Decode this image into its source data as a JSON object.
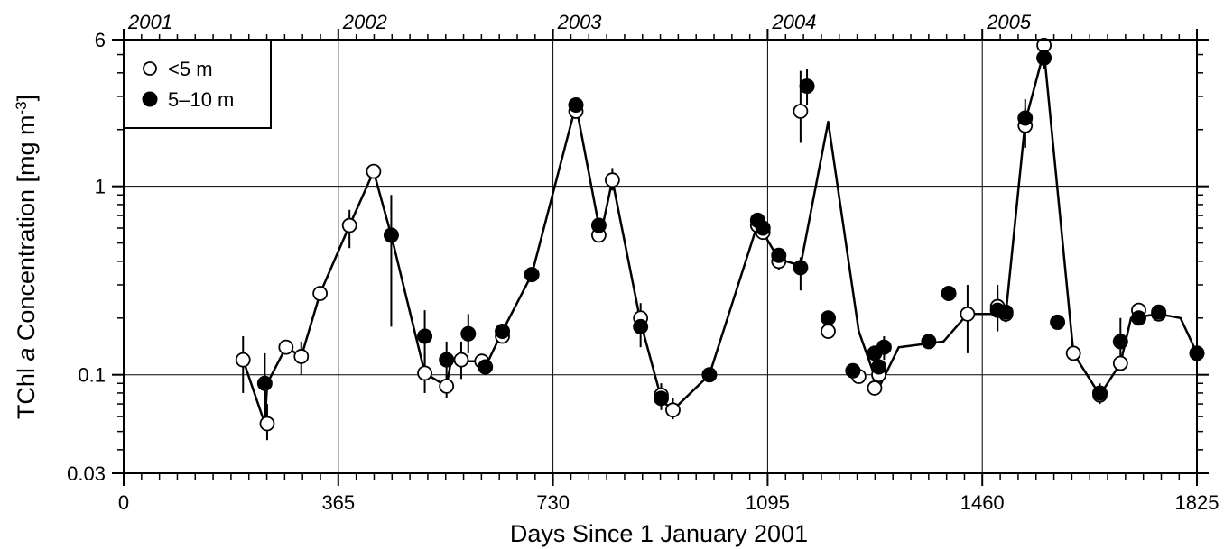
{
  "chart_data": {
    "type": "scatter",
    "title": "",
    "xlabel": "Days Since 1 January 2001",
    "ylabel_parts": {
      "pre": "TChl ",
      "italic": "a",
      "post": " Concentration [mg m",
      "sup": "-3",
      "end": "]"
    },
    "xlim": [
      0,
      1825
    ],
    "ylim": [
      0.03,
      6
    ],
    "y_scale": "log",
    "grid": true,
    "x_ticks": [
      0,
      365,
      730,
      1095,
      1460,
      1825
    ],
    "x_tick_labels": [
      "0",
      "365",
      "730",
      "1095",
      "1460",
      "1825"
    ],
    "y_ticks": [
      0.03,
      0.1,
      1,
      6
    ],
    "y_tick_labels": [
      "0.03",
      "0.1",
      "1",
      "6"
    ],
    "top_axis_labels": [
      {
        "x": 0,
        "label": "2001"
      },
      {
        "x": 365,
        "label": "2002"
      },
      {
        "x": 730,
        "label": "2003"
      },
      {
        "x": 1095,
        "label": "2004"
      },
      {
        "x": 1460,
        "label": "2005"
      }
    ],
    "legend": {
      "position": "top-left",
      "entries": [
        "<5 m",
        "5–10 m"
      ]
    },
    "connecting_line": {
      "x": [
        203,
        240,
        244,
        276,
        302,
        334,
        384,
        425,
        455,
        512,
        549,
        557,
        574,
        586,
        609,
        615,
        644,
        694,
        769,
        808,
        811,
        831,
        879,
        914,
        917,
        934,
        996,
        1078,
        1087,
        1114,
        1151,
        1198,
        1250,
        1277,
        1284,
        1318,
        1394,
        1435,
        1486,
        1500,
        1533,
        1565,
        1615,
        1660,
        1695,
        1713,
        1760,
        1797,
        1825
      ],
      "y": [
        0.12,
        0.055,
        0.09,
        0.14,
        0.125,
        0.27,
        0.62,
        1.2,
        0.55,
        0.102,
        0.087,
        0.12,
        0.12,
        0.118,
        0.118,
        0.11,
        0.17,
        0.34,
        2.7,
        0.62,
        0.55,
        1.08,
        0.19,
        0.075,
        0.072,
        0.065,
        0.1,
        0.63,
        0.57,
        0.41,
        0.38,
        2.2,
        0.17,
        0.098,
        0.085,
        0.14,
        0.15,
        0.21,
        0.21,
        0.21,
        2.2,
        5.2,
        0.13,
        0.078,
        0.115,
        0.2,
        0.21,
        0.2,
        0.13
      ]
    },
    "series": [
      {
        "name": "<5 m",
        "marker": "open-circle",
        "x": [
          203,
          244,
          276,
          302,
          334,
          384,
          425,
          512,
          549,
          574,
          609,
          644,
          769,
          808,
          831,
          879,
          914,
          934,
          1078,
          1087,
          1114,
          1151,
          1198,
          1250,
          1277,
          1284,
          1435,
          1486,
          1500,
          1533,
          1565,
          1615,
          1660,
          1695,
          1726,
          1760,
          1825
        ],
        "y": [
          0.12,
          0.055,
          0.14,
          0.125,
          0.27,
          0.62,
          1.2,
          0.102,
          0.087,
          0.12,
          0.118,
          0.16,
          2.5,
          0.55,
          1.08,
          0.2,
          0.078,
          0.065,
          0.62,
          0.57,
          0.4,
          2.5,
          0.17,
          0.098,
          0.085,
          0.1,
          0.21,
          0.23,
          0.21,
          2.1,
          5.6,
          0.13,
          0.078,
          0.115,
          0.22,
          0.21,
          0.13
        ],
        "error_low": [
          0.08,
          0.045,
          null,
          0.1,
          null,
          0.47,
          null,
          0.08,
          0.075,
          0.095,
          null,
          null,
          null,
          null,
          0.95,
          null,
          0.07,
          0.058,
          null,
          null,
          0.36,
          1.7,
          null,
          null,
          null,
          0.085,
          0.13,
          0.17,
          0.19,
          1.6,
          4.6,
          null,
          null,
          null,
          null,
          null,
          null
        ],
        "error_high": [
          0.16,
          0.07,
          null,
          0.15,
          null,
          0.75,
          null,
          0.13,
          0.1,
          0.15,
          null,
          null,
          null,
          null,
          1.25,
          null,
          0.09,
          0.075,
          null,
          null,
          0.46,
          4.1,
          null,
          null,
          null,
          0.12,
          0.3,
          0.3,
          0.23,
          2.9,
          6.0,
          null,
          null,
          null,
          null,
          null,
          null
        ]
      },
      {
        "name": "5–10 m",
        "marker": "filled-circle",
        "x": [
          240,
          455,
          512,
          549,
          586,
          615,
          644,
          694,
          769,
          808,
          879,
          914,
          996,
          1078,
          1087,
          1114,
          1151,
          1162,
          1198,
          1240,
          1277,
          1284,
          1293,
          1369,
          1403,
          1486,
          1500,
          1533,
          1565,
          1588,
          1660,
          1695,
          1726,
          1760,
          1825
        ],
        "y": [
          0.09,
          0.55,
          0.16,
          0.12,
          0.165,
          0.11,
          0.17,
          0.34,
          2.7,
          0.62,
          0.18,
          0.075,
          0.1,
          0.66,
          0.6,
          0.43,
          0.37,
          3.4,
          0.2,
          0.105,
          0.13,
          0.11,
          0.14,
          0.15,
          0.27,
          0.22,
          0.215,
          2.3,
          4.8,
          0.19,
          0.08,
          0.15,
          0.2,
          0.215,
          0.13
        ],
        "error_low": [
          0.06,
          0.18,
          0.11,
          0.09,
          0.13,
          null,
          null,
          null,
          null,
          null,
          0.14,
          0.065,
          null,
          null,
          null,
          null,
          0.28,
          2.7,
          null,
          null,
          null,
          0.09,
          0.12,
          null,
          null,
          0.17,
          null,
          1.6,
          4.2,
          null,
          0.07,
          0.12,
          null,
          null,
          null
        ],
        "error_high": [
          0.13,
          0.9,
          0.22,
          0.15,
          0.21,
          null,
          null,
          null,
          null,
          null,
          0.24,
          0.09,
          null,
          null,
          null,
          null,
          0.42,
          4.2,
          null,
          null,
          null,
          0.15,
          0.16,
          null,
          null,
          0.28,
          null,
          2.6,
          5.4,
          null,
          0.09,
          0.2,
          null,
          null,
          null
        ]
      }
    ]
  }
}
